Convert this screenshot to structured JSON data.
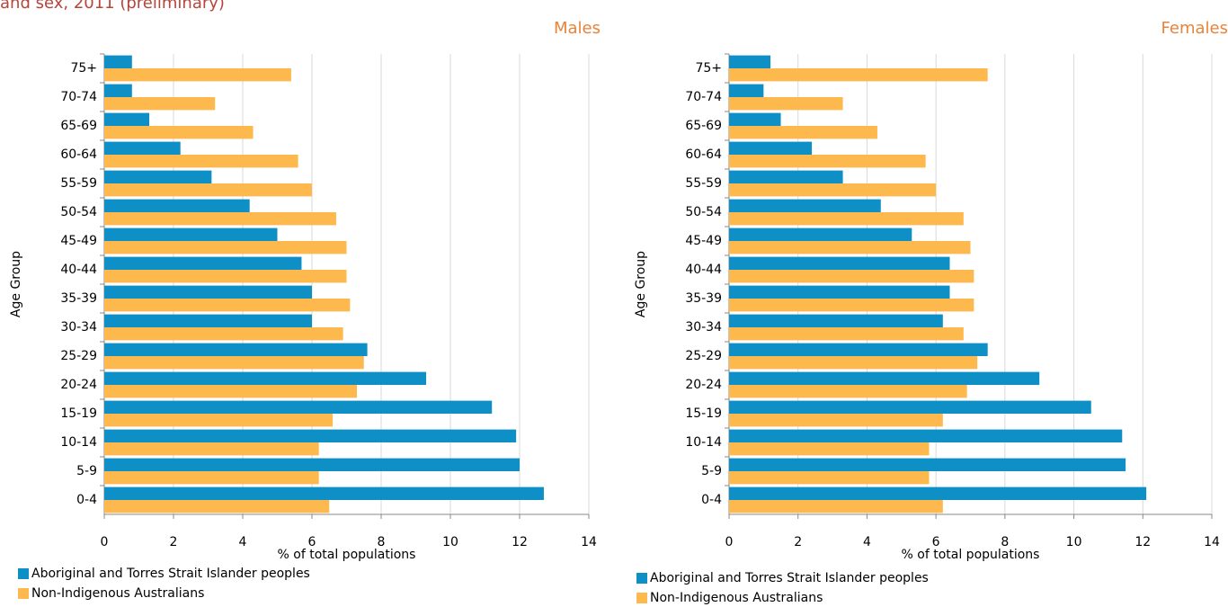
{
  "page_heading": "and sex, 2011 (preliminary)",
  "chart_data": [
    {
      "type": "bar",
      "orientation": "horizontal",
      "title": "Males",
      "categories": [
        "0-4",
        "5-9",
        "10-14",
        "15-19",
        "20-24",
        "25-29",
        "30-34",
        "35-39",
        "40-44",
        "45-49",
        "50-54",
        "55-59",
        "60-64",
        "65-69",
        "70-74",
        "75+"
      ],
      "series": [
        {
          "name": "Aboriginal and Torres Strait Islander peoples",
          "color": "#0e8fc6",
          "values": [
            12.7,
            12.0,
            11.9,
            11.2,
            9.3,
            7.6,
            6.0,
            6.0,
            5.7,
            5.0,
            4.2,
            3.1,
            2.2,
            1.3,
            0.8,
            0.8
          ]
        },
        {
          "name": "Non-Indigenous Australians",
          "color": "#fdb94e",
          "values": [
            6.5,
            6.2,
            6.2,
            6.6,
            7.3,
            7.5,
            6.9,
            7.1,
            7.0,
            7.0,
            6.7,
            6.0,
            5.6,
            4.3,
            3.2,
            5.4
          ]
        }
      ],
      "xlim": [
        0,
        14
      ],
      "xticks": [
        0,
        2,
        4,
        6,
        8,
        10,
        12,
        14
      ],
      "xlabel": "% of total populations",
      "ylabel": "Age Group",
      "grid": true
    },
    {
      "type": "bar",
      "orientation": "horizontal",
      "title": "Females",
      "categories": [
        "0-4",
        "5-9",
        "10-14",
        "15-19",
        "20-24",
        "25-29",
        "30-34",
        "35-39",
        "40-44",
        "45-49",
        "50-54",
        "55-59",
        "60-64",
        "65-69",
        "70-74",
        "75+"
      ],
      "series": [
        {
          "name": "Aboriginal and Torres Strait Islander peoples",
          "color": "#0e8fc6",
          "values": [
            12.1,
            11.5,
            11.4,
            10.5,
            9.0,
            7.5,
            6.2,
            6.4,
            6.4,
            5.3,
            4.4,
            3.3,
            2.4,
            1.5,
            1.0,
            1.2
          ]
        },
        {
          "name": "Non-Indigenous Australians",
          "color": "#fdb94e",
          "values": [
            6.2,
            5.8,
            5.8,
            6.2,
            6.9,
            7.2,
            6.8,
            7.1,
            7.1,
            7.0,
            6.8,
            6.0,
            5.7,
            4.3,
            3.3,
            7.5
          ]
        }
      ],
      "xlim": [
        0,
        14
      ],
      "xticks": [
        0,
        2,
        4,
        6,
        8,
        10,
        12,
        14
      ],
      "xlabel": "% of total populations",
      "ylabel": "Age Group",
      "grid": true
    }
  ]
}
